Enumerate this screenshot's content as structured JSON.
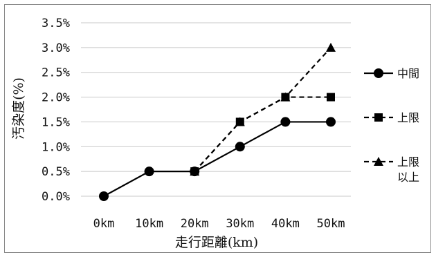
{
  "chart_data": {
    "type": "line",
    "categories": [
      "0km",
      "10km",
      "20km",
      "30km",
      "40km",
      "50km"
    ],
    "y_ticks": [
      "0.0%",
      "0.5%",
      "1.0%",
      "1.5%",
      "2.0%",
      "2.5%",
      "3.0%",
      "3.5%"
    ],
    "ylim": [
      0,
      3.5
    ],
    "xlabel": "走行距離(km)",
    "ylabel": "汚染度(%)",
    "legend_placement": "right",
    "grid": "horizontal",
    "series": [
      {
        "name": "中間",
        "values": [
          0,
          0.5,
          0.5,
          1.0,
          1.5,
          1.5
        ],
        "marker": "circle",
        "dash": "solid"
      },
      {
        "name": "上限",
        "values": [
          null,
          null,
          0.5,
          1.5,
          2.0,
          2.0
        ],
        "marker": "square",
        "dash": "dashed"
      },
      {
        "name": "上限\n以上",
        "name_lines": [
          "上限",
          "以上"
        ],
        "values": [
          null,
          null,
          0.5,
          1.5,
          2.0,
          3.0
        ],
        "marker": "triangle",
        "dash": "dashed"
      }
    ]
  }
}
